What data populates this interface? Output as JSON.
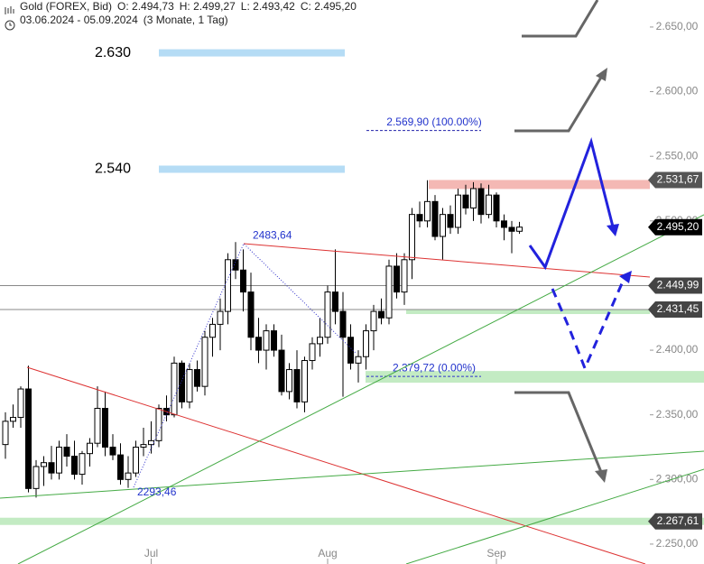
{
  "header": {
    "title": "Gold (FOREX, Bid)",
    "open": "O: 2.494,73",
    "high": "H: 2.499,27",
    "low": "L: 2.493,42",
    "close": "C: 2.495,20",
    "range": "03.06.2024 - 05.09.2024",
    "period": "(3 Monate, 1 Tag)"
  },
  "chart_data": {
    "type": "candlestick",
    "categories": [
      null,
      null,
      null,
      null,
      null,
      null,
      null,
      null,
      null,
      null,
      null,
      null,
      null,
      null,
      null,
      null,
      null,
      null,
      null,
      "Jul",
      null,
      null,
      null,
      null,
      null,
      null,
      null,
      null,
      null,
      null,
      null,
      null,
      null,
      null,
      null,
      null,
      null,
      null,
      null,
      null,
      null,
      null,
      "Aug",
      null,
      null,
      null,
      null,
      null,
      null,
      null,
      null,
      null,
      null,
      null,
      null,
      null,
      null,
      null,
      null,
      null,
      null,
      null,
      null,
      null,
      "Sep",
      null,
      null,
      null
    ],
    "open": [
      2327,
      2345,
      2348,
      2370,
      2293,
      2310,
      2313,
      2305,
      2325,
      2318,
      2304,
      2320,
      2328,
      2355,
      2325,
      2319,
      2300,
      2305,
      2325,
      2327,
      2330,
      2355,
      2350,
      2390,
      2360,
      2385,
      2372,
      2410,
      2420,
      2430,
      2470,
      2462,
      2445,
      2410,
      2400,
      2415,
      2400,
      2368,
      2385,
      2360,
      2392,
      2405,
      2410,
      2445,
      2430,
      2410,
      2390,
      2395,
      2415,
      2430,
      2425,
      2465,
      2445,
      2470,
      2505,
      2500,
      2515,
      2488,
      2505,
      2495,
      2520,
      2510,
      2525,
      2505,
      2520,
      2500,
      2495,
      2492
    ],
    "high": [
      2352,
      2358,
      2372,
      2388,
      2315,
      2318,
      2326,
      2330,
      2335,
      2330,
      2322,
      2332,
      2372,
      2368,
      2335,
      2328,
      2318,
      2330,
      2340,
      2345,
      2358,
      2365,
      2395,
      2392,
      2390,
      2392,
      2415,
      2425,
      2440,
      2475,
      2483.64,
      2478,
      2460,
      2425,
      2420,
      2420,
      2412,
      2390,
      2400,
      2395,
      2410,
      2425,
      2450,
      2478,
      2445,
      2420,
      2400,
      2420,
      2435,
      2440,
      2470,
      2475,
      2475,
      2510,
      2515,
      2531.5,
      2520,
      2510,
      2512,
      2525,
      2528,
      2530,
      2529,
      2528,
      2522,
      2505,
      2500,
      2499.27
    ],
    "low": [
      2316,
      2340,
      2340,
      2290,
      2286,
      2295,
      2300,
      2300,
      2310,
      2300,
      2296,
      2310,
      2325,
      2318,
      2315,
      2296,
      2293.46,
      2302,
      2318,
      2320,
      2325,
      2345,
      2348,
      2355,
      2355,
      2368,
      2365,
      2395,
      2400,
      2420,
      2455,
      2430,
      2400,
      2390,
      2385,
      2395,
      2365,
      2362,
      2355,
      2352,
      2385,
      2395,
      2405,
      2420,
      2364,
      2385,
      2375,
      2385,
      2400,
      2420,
      2420,
      2440,
      2435,
      2455,
      2495,
      2495,
      2485,
      2470,
      2490,
      2490,
      2505,
      2500,
      2498,
      2502,
      2495,
      2485,
      2475,
      2490
    ],
    "close": [
      2345,
      2348,
      2370,
      2293,
      2310,
      2313,
      2305,
      2325,
      2318,
      2304,
      2320,
      2328,
      2355,
      2325,
      2319,
      2300,
      2305,
      2325,
      2327,
      2330,
      2355,
      2350,
      2390,
      2360,
      2385,
      2372,
      2410,
      2420,
      2430,
      2470,
      2462,
      2445,
      2410,
      2400,
      2415,
      2400,
      2368,
      2385,
      2360,
      2392,
      2405,
      2410,
      2445,
      2430,
      2410,
      2390,
      2395,
      2415,
      2430,
      2425,
      2465,
      2445,
      2470,
      2505,
      2500,
      2515,
      2488,
      2505,
      2495,
      2520,
      2510,
      2525,
      2505,
      2520,
      2500,
      2495,
      2492,
      2495.2
    ],
    "up_color": "#ffffff",
    "down_color": "#000000",
    "ylim": [
      2234.6,
      2670.9
    ],
    "yticks": [
      {
        "value": 2650,
        "label": "2.650,00"
      },
      {
        "value": 2600,
        "label": "2.600,00"
      },
      {
        "value": 2550,
        "label": "2.550,00"
      },
      {
        "value": 2500,
        "label": "2.500,00"
      },
      {
        "value": 2450,
        "label": "2.450,00"
      },
      {
        "value": 2400,
        "label": "2.400,00"
      },
      {
        "value": 2350,
        "label": "2.350,00"
      },
      {
        "value": 2300,
        "label": "2.300,00"
      },
      {
        "value": 2250,
        "label": "2.250,00"
      }
    ],
    "price_tags": [
      {
        "value": 2531.67,
        "label": "2.531,67",
        "color": "#555555"
      },
      {
        "value": 2495.2,
        "label": "2.495,20",
        "color": "#000000"
      },
      {
        "value": 2449.99,
        "label": "2.449,99",
        "color": "#444444"
      },
      {
        "value": 2431.45,
        "label": "2.431,45",
        "color": "#444444"
      },
      {
        "value": 2267.61,
        "label": "2.267,61",
        "color": "#444444"
      }
    ],
    "targets": [
      {
        "value": 2630,
        "label": "2.630"
      },
      {
        "value": 2540,
        "label": "2.540"
      }
    ],
    "fibonacci": [
      {
        "value": 2569.9,
        "label": "2.569,90 (100.00%)"
      },
      {
        "value": 2379.72,
        "label": "2.379,72 (0.00%)"
      }
    ],
    "pivots": [
      {
        "value": 2483.64,
        "label": "2483,64"
      },
      {
        "value": 2293.46,
        "label": "2293,46"
      }
    ]
  }
}
